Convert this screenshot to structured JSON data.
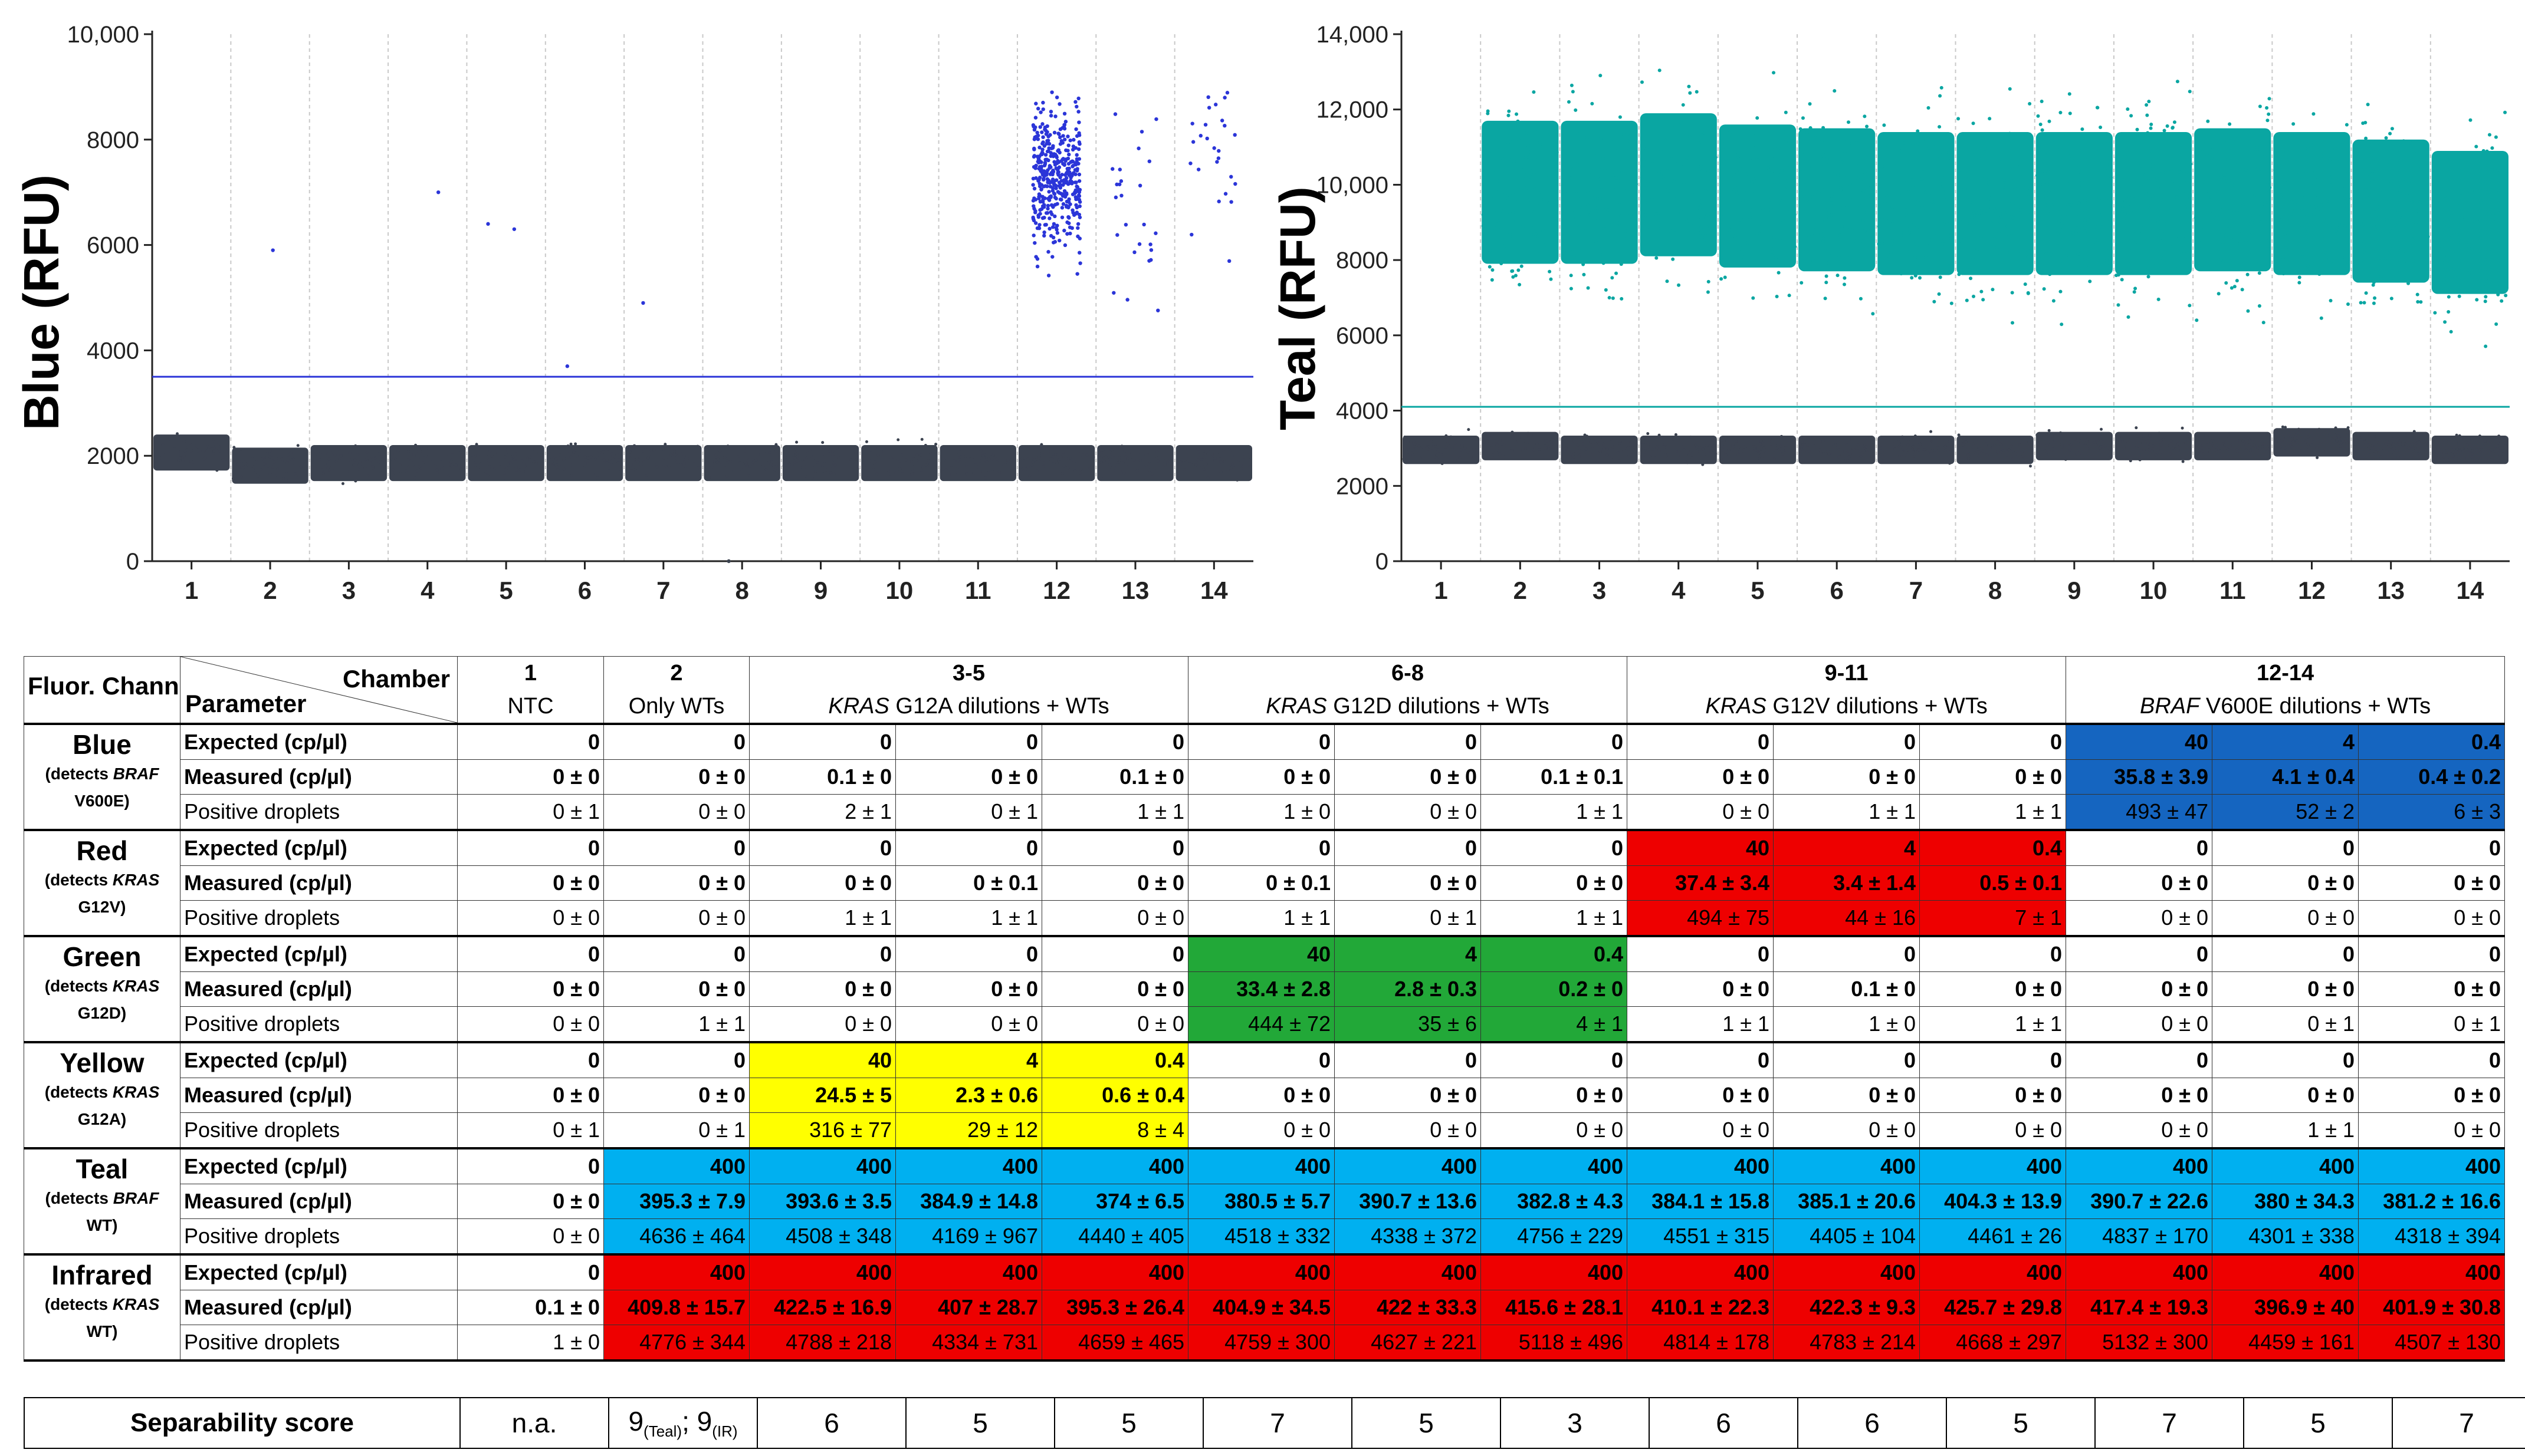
{
  "plots": [
    {
      "id": "blue",
      "ylabel": "Blue (RFU)",
      "yticks": [
        "10,000",
        "8000",
        "6000",
        "4000",
        "2000",
        "0"
      ],
      "ytick_values": [
        10000,
        8000,
        6000,
        4000,
        2000,
        0
      ],
      "ymax": 10000,
      "threshold": 3500,
      "xticks": [
        "1",
        "2",
        "3",
        "4",
        "5",
        "6",
        "7",
        "8",
        "9",
        "10",
        "11",
        "12",
        "13",
        "14"
      ],
      "neg_color": "#3c4350",
      "pos_color": "#2b35d8"
    },
    {
      "id": "teal",
      "ylabel": "Teal (RFU)",
      "yticks": [
        "14,000",
        "12,000",
        "10,000",
        "8000",
        "6000",
        "4000",
        "2000",
        "0"
      ],
      "ytick_values": [
        14000,
        12000,
        10000,
        8000,
        6000,
        4000,
        2000,
        0
      ],
      "ymax": 14000,
      "threshold": 4100,
      "xticks": [
        "1",
        "2",
        "3",
        "4",
        "5",
        "6",
        "7",
        "8",
        "9",
        "10",
        "11",
        "12",
        "13",
        "14"
      ],
      "neg_color": "#3c4350",
      "pos_color": "#0aa6a2"
    }
  ],
  "chart_data": [
    {
      "type": "scatter",
      "title": "",
      "ylabel": "Blue (RFU)",
      "xlabel": "",
      "categories": [
        "1",
        "2",
        "3",
        "4",
        "5",
        "6",
        "7",
        "8",
        "9",
        "10",
        "11",
        "12",
        "13",
        "14"
      ],
      "ylim": [
        0,
        10000
      ],
      "threshold": 3500,
      "series": [
        {
          "name": "negative droplets",
          "values": [
            2100,
            1850,
            1900,
            1900,
            1900,
            1900,
            1900,
            1900,
            1900,
            1900,
            1900,
            1900,
            1900,
            1900
          ]
        },
        {
          "name": "positive droplets",
          "values": [
            0,
            0,
            0,
            0,
            0,
            0,
            0,
            0,
            0,
            0,
            0,
            7300,
            6500,
            8000
          ]
        }
      ]
    },
    {
      "type": "scatter",
      "title": "",
      "ylabel": "Teal (RFU)",
      "xlabel": "",
      "categories": [
        "1",
        "2",
        "3",
        "4",
        "5",
        "6",
        "7",
        "8",
        "9",
        "10",
        "11",
        "12",
        "13",
        "14"
      ],
      "ylim": [
        0,
        14000
      ],
      "threshold": 4100,
      "series": [
        {
          "name": "negative droplets",
          "values": [
            3000,
            3100,
            3000,
            3000,
            3000,
            3000,
            3000,
            3000,
            3100,
            3100,
            3100,
            3200,
            3100,
            3000
          ]
        },
        {
          "name": "positive droplets",
          "values": [
            0,
            9800,
            9800,
            10000,
            9700,
            9600,
            9500,
            9500,
            9500,
            9500,
            9600,
            9500,
            9300,
            9000
          ]
        }
      ]
    }
  ],
  "table": {
    "header": {
      "corner_channel": "Fluor. Channel",
      "corner_chamber": "Chamber",
      "corner_parameter": "Parameter",
      "groups": [
        {
          "num": "1",
          "label": "NTC",
          "span": 1,
          "gene": ""
        },
        {
          "num": "2",
          "label": "Only WTs",
          "span": 1,
          "gene": ""
        },
        {
          "num": "3-5",
          "gene": "KRAS",
          "label": " G12A dilutions + WTs",
          "span": 3
        },
        {
          "num": "6-8",
          "gene": "KRAS",
          "label": " G12D dilutions + WTs",
          "span": 3
        },
        {
          "num": "9-11",
          "gene": "KRAS",
          "label": " G12V dilutions + WTs",
          "span": 3
        },
        {
          "num": "12-14",
          "gene": "BRAF",
          "label": " V600E dilutions + WTs",
          "span": 3
        }
      ]
    },
    "colors": {
      "blue": "#1565c0",
      "red": "#ee0000",
      "green": "#22a838",
      "yellow": "#ffff00",
      "cyan": "#00b0f0",
      "white": "#ffffff"
    },
    "channels": [
      {
        "name": "Blue",
        "detects": "(detects",
        "target_gene": "BRAF",
        "target_mut": "V600E)",
        "rows": [
          {
            "param": "Expected (cp/µl)",
            "bold": true,
            "values": [
              "0",
              "0",
              "0",
              "0",
              "0",
              "0",
              "0",
              "0",
              "0",
              "0",
              "0",
              "40",
              "4",
              "0.4"
            ]
          },
          {
            "param": "Measured (cp/µl)",
            "bold": true,
            "values": [
              "0 ± 0",
              "0 ± 0",
              "0.1 ± 0",
              "0 ± 0",
              "0.1 ± 0",
              "0 ± 0",
              "0 ± 0",
              "0.1 ± 0.1",
              "0 ± 0",
              "0 ± 0",
              "0 ± 0",
              "35.8 ± 3.9",
              "4.1 ± 0.4",
              "0.4 ± 0.2"
            ]
          },
          {
            "param": "Positive droplets",
            "bold": false,
            "values": [
              "0 ± 1",
              "0 ± 0",
              "2 ± 1",
              "0 ± 1",
              "1 ± 1",
              "1 ± 0",
              "0 ± 0",
              "1 ± 1",
              "0 ± 0",
              "1 ± 1",
              "1 ± 1",
              "493 ± 47",
              "52 ± 2",
              "6 ± 3"
            ]
          }
        ],
        "fills": [
          "white",
          "white",
          "white",
          "white",
          "white",
          "white",
          "white",
          "white",
          "white",
          "white",
          "white",
          "blue",
          "blue",
          "blue"
        ]
      },
      {
        "name": "Red",
        "detects": "(detects",
        "target_gene": "KRAS",
        "target_mut": "G12V)",
        "rows": [
          {
            "param": "Expected (cp/µl)",
            "bold": true,
            "values": [
              "0",
              "0",
              "0",
              "0",
              "0",
              "0",
              "0",
              "0",
              "40",
              "4",
              "0.4",
              "0",
              "0",
              "0"
            ]
          },
          {
            "param": "Measured (cp/µl)",
            "bold": true,
            "values": [
              "0 ± 0",
              "0 ± 0",
              "0 ± 0",
              "0 ± 0.1",
              "0 ± 0",
              "0 ± 0.1",
              "0 ± 0",
              "0 ± 0",
              "37.4 ± 3.4",
              "3.4 ± 1.4",
              "0.5 ± 0.1",
              "0 ± 0",
              "0 ± 0",
              "0 ± 0"
            ]
          },
          {
            "param": "Positive droplets",
            "bold": false,
            "values": [
              "0 ± 0",
              "0 ± 0",
              "1 ± 1",
              "1 ± 1",
              "0 ± 0",
              "1 ± 1",
              "0 ± 1",
              "1 ± 1",
              "494 ± 75",
              "44 ± 16",
              "7 ± 1",
              "0 ± 0",
              "0 ± 0",
              "0 ± 0"
            ]
          }
        ],
        "fills": [
          "white",
          "white",
          "white",
          "white",
          "white",
          "white",
          "white",
          "white",
          "red",
          "red",
          "red",
          "white",
          "white",
          "white"
        ]
      },
      {
        "name": "Green",
        "detects": "(detects",
        "target_gene": "KRAS",
        "target_mut": "G12D)",
        "rows": [
          {
            "param": "Expected (cp/µl)",
            "bold": true,
            "values": [
              "0",
              "0",
              "0",
              "0",
              "0",
              "40",
              "4",
              "0.4",
              "0",
              "0",
              "0",
              "0",
              "0",
              "0"
            ]
          },
          {
            "param": "Measured (cp/µl)",
            "bold": true,
            "values": [
              "0 ± 0",
              "0 ± 0",
              "0 ± 0",
              "0 ± 0",
              "0 ± 0",
              "33.4 ± 2.8",
              "2.8 ± 0.3",
              "0.2 ± 0",
              "0 ± 0",
              "0.1 ± 0",
              "0 ± 0",
              "0 ± 0",
              "0 ± 0",
              "0 ± 0"
            ]
          },
          {
            "param": "Positive droplets",
            "bold": false,
            "values": [
              "0 ± 0",
              "1 ± 1",
              "0 ± 0",
              "0 ± 0",
              "0 ± 0",
              "444 ± 72",
              "35 ± 6",
              "4 ± 1",
              "1 ± 1",
              "1 ± 0",
              "1 ± 1",
              "0 ± 0",
              "0 ± 1",
              "0 ± 1"
            ]
          }
        ],
        "fills": [
          "white",
          "white",
          "white",
          "white",
          "white",
          "green",
          "green",
          "green",
          "white",
          "white",
          "white",
          "white",
          "white",
          "white"
        ]
      },
      {
        "name": "Yellow",
        "detects": "(detects",
        "target_gene": "KRAS",
        "target_mut": "G12A)",
        "rows": [
          {
            "param": "Expected (cp/µl)",
            "bold": true,
            "values": [
              "0",
              "0",
              "40",
              "4",
              "0.4",
              "0",
              "0",
              "0",
              "0",
              "0",
              "0",
              "0",
              "0",
              "0"
            ]
          },
          {
            "param": "Measured (cp/µl)",
            "bold": true,
            "values": [
              "0 ± 0",
              "0 ± 0",
              "24.5 ± 5",
              "2.3 ± 0.6",
              "0.6 ± 0.4",
              "0 ± 0",
              "0 ± 0",
              "0 ± 0",
              "0 ± 0",
              "0 ± 0",
              "0 ± 0",
              "0 ± 0",
              "0 ± 0",
              "0 ± 0"
            ]
          },
          {
            "param": "Positive droplets",
            "bold": false,
            "values": [
              "0 ± 1",
              "0 ± 1",
              "316 ± 77",
              "29 ± 12",
              "8 ± 4",
              "0 ± 0",
              "0 ± 0",
              "0 ± 0",
              "0 ± 0",
              "0 ± 0",
              "0 ± 0",
              "0 ± 0",
              "1 ± 1",
              "0 ± 0"
            ]
          }
        ],
        "fills": [
          "white",
          "white",
          "yellow",
          "yellow",
          "yellow",
          "white",
          "white",
          "white",
          "white",
          "white",
          "white",
          "white",
          "white",
          "white"
        ]
      },
      {
        "name": "Teal",
        "detects": "(detects",
        "target_gene": "BRAF",
        "target_mut": "WT)",
        "rows": [
          {
            "param": "Expected (cp/µl)",
            "bold": true,
            "values": [
              "0",
              "400",
              "400",
              "400",
              "400",
              "400",
              "400",
              "400",
              "400",
              "400",
              "400",
              "400",
              "400",
              "400"
            ]
          },
          {
            "param": "Measured (cp/µl)",
            "bold": true,
            "values": [
              "0 ± 0",
              "395.3 ± 7.9",
              "393.6 ± 3.5",
              "384.9 ± 14.8",
              "374 ± 6.5",
              "380.5 ± 5.7",
              "390.7 ± 13.6",
              "382.8 ± 4.3",
              "384.1 ± 15.8",
              "385.1 ± 20.6",
              "404.3 ± 13.9",
              "390.7 ± 22.6",
              "380 ± 34.3",
              "381.2 ± 16.6"
            ]
          },
          {
            "param": "Positive droplets",
            "bold": false,
            "values": [
              "0 ± 0",
              "4636 ± 464",
              "4508 ± 348",
              "4169 ± 967",
              "4440 ± 405",
              "4518 ± 332",
              "4338 ± 372",
              "4756 ± 229",
              "4551 ± 315",
              "4405 ± 104",
              "4461 ± 26",
              "4837 ± 170",
              "4301 ± 338",
              "4318 ± 394"
            ]
          }
        ],
        "fills": [
          "white",
          "cyan",
          "cyan",
          "cyan",
          "cyan",
          "cyan",
          "cyan",
          "cyan",
          "cyan",
          "cyan",
          "cyan",
          "cyan",
          "cyan",
          "cyan"
        ]
      },
      {
        "name": "Infrared",
        "detects": "(detects",
        "target_gene": "KRAS",
        "target_mut": "WT)",
        "rows": [
          {
            "param": "Expected (cp/µl)",
            "bold": true,
            "values": [
              "0",
              "400",
              "400",
              "400",
              "400",
              "400",
              "400",
              "400",
              "400",
              "400",
              "400",
              "400",
              "400",
              "400"
            ]
          },
          {
            "param": "Measured (cp/µl)",
            "bold": true,
            "values": [
              "0.1 ± 0",
              "409.8 ± 15.7",
              "422.5 ± 16.9",
              "407 ± 28.7",
              "395.3 ± 26.4",
              "404.9 ± 34.5",
              "422 ± 33.3",
              "415.6 ± 28.1",
              "410.1 ± 22.3",
              "422.3 ± 9.3",
              "425.7 ± 29.8",
              "417.4 ± 19.3",
              "396.9 ± 40",
              "401.9 ± 30.8"
            ]
          },
          {
            "param": "Positive droplets",
            "bold": false,
            "values": [
              "1 ± 0",
              "4776 ± 344",
              "4788 ± 218",
              "4334 ± 731",
              "4659 ± 465",
              "4759 ± 300",
              "4627 ± 221",
              "5118 ± 496",
              "4814 ± 178",
              "4783 ± 214",
              "4668 ± 297",
              "5132 ± 300",
              "4459 ± 161",
              "4507 ± 130"
            ]
          }
        ],
        "fills": [
          "white",
          "red",
          "red",
          "red",
          "red",
          "red",
          "red",
          "red",
          "red",
          "red",
          "red",
          "red",
          "red",
          "red"
        ]
      }
    ],
    "separability": {
      "label": "Separability score",
      "na": "n.a.",
      "chamber2": {
        "teal_value": "9",
        "teal_tag": "(Teal)",
        "ir_value": "9",
        "ir_tag": "(IR)"
      },
      "values": [
        "6",
        "5",
        "5",
        "7",
        "5",
        "3",
        "6",
        "6",
        "5",
        "7",
        "5",
        "7"
      ]
    }
  }
}
